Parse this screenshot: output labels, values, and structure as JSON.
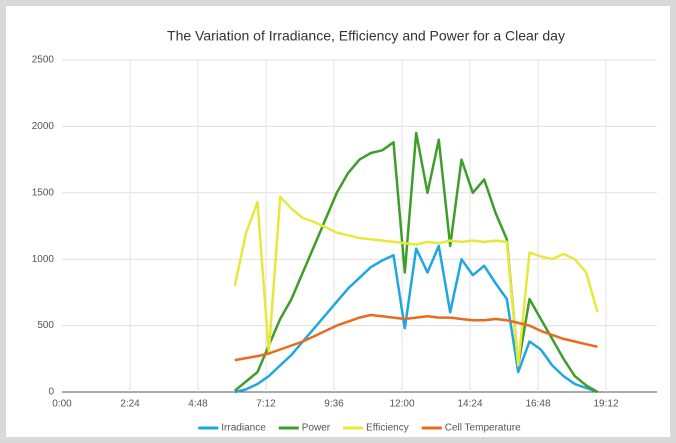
{
  "chart_data": {
    "type": "line",
    "title": "The Variation of Irradiance, Efficiency and Power for a Clear day",
    "x": [
      6.1,
      6.5,
      6.9,
      7.3,
      7.7,
      8.1,
      8.5,
      8.9,
      9.3,
      9.7,
      10.1,
      10.5,
      10.9,
      11.3,
      11.7,
      12.1,
      12.5,
      12.9,
      13.3,
      13.7,
      14.1,
      14.5,
      14.9,
      15.3,
      15.7,
      16.1,
      16.5,
      16.9,
      17.3,
      17.7,
      18.1,
      18.5,
      18.9
    ],
    "series": [
      {
        "name": "Irradiance",
        "color": "#1ea7e1",
        "values": [
          0,
          20,
          60,
          120,
          200,
          280,
          380,
          480,
          580,
          680,
          780,
          860,
          940,
          990,
          1030,
          480,
          1080,
          900,
          1100,
          600,
          1000,
          880,
          950,
          820,
          700,
          150,
          380,
          320,
          200,
          120,
          60,
          30,
          0
        ]
      },
      {
        "name": "Power",
        "color": "#3d9f2a",
        "values": [
          10,
          80,
          150,
          350,
          550,
          700,
          900,
          1100,
          1300,
          1500,
          1650,
          1750,
          1800,
          1820,
          1880,
          900,
          1950,
          1500,
          1900,
          1100,
          1750,
          1500,
          1600,
          1350,
          1150,
          200,
          700,
          550,
          400,
          250,
          120,
          50,
          0
        ]
      },
      {
        "name": "Efficiency",
        "color": "#e8e83a",
        "values": [
          800,
          1200,
          1430,
          300,
          1470,
          1380,
          1310,
          1280,
          1240,
          1200,
          1180,
          1160,
          1150,
          1140,
          1130,
          1120,
          1110,
          1130,
          1120,
          1140,
          1130,
          1140,
          1130,
          1140,
          1130,
          200,
          1050,
          1020,
          1000,
          1040,
          1000,
          900,
          600
        ]
      },
      {
        "name": "Cell Temperature",
        "color": "#e86b1f",
        "values": [
          240,
          255,
          270,
          290,
          320,
          350,
          380,
          420,
          460,
          500,
          530,
          560,
          580,
          570,
          560,
          550,
          560,
          570,
          560,
          560,
          550,
          540,
          540,
          550,
          540,
          520,
          500,
          460,
          430,
          400,
          380,
          360,
          340
        ]
      }
    ],
    "xlim": [
      0,
      21
    ],
    "xticks": [
      {
        "value": 0,
        "label": "0:00"
      },
      {
        "value": 2.4,
        "label": "2:24"
      },
      {
        "value": 4.8,
        "label": "4:48"
      },
      {
        "value": 7.2,
        "label": "7:12"
      },
      {
        "value": 9.6,
        "label": "9:36"
      },
      {
        "value": 12,
        "label": "12:00"
      },
      {
        "value": 14.4,
        "label": "14:24"
      },
      {
        "value": 16.8,
        "label": "16:48"
      },
      {
        "value": 19.2,
        "label": "19:12"
      }
    ],
    "ylim": [
      0,
      2500
    ],
    "yticks": [
      0,
      500,
      1000,
      1500,
      2000,
      2500
    ],
    "grid": true,
    "legend": "bottom"
  }
}
